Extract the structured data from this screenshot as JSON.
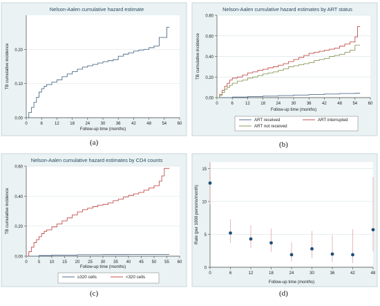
{
  "captions": {
    "a": "(a)",
    "b": "(b)",
    "c": "(c)",
    "d": "(d)"
  },
  "chart_data": [
    {
      "id": "a",
      "type": "line",
      "title": "Nelson-Aalen cumulative hazard estimate",
      "xlabel": "Follow-up time (months)",
      "ylabel": "TB cumulative incidence",
      "xlim": [
        0,
        60
      ],
      "ylim": [
        0,
        0.3
      ],
      "x_ticks": [
        0,
        6,
        12,
        18,
        24,
        30,
        36,
        42,
        48,
        54,
        60
      ],
      "y_ticks": [
        0,
        0.1,
        0.2
      ],
      "y_tick_labels": [
        "0.00",
        "0.10",
        "0.20"
      ],
      "series": [
        {
          "color": "#4f6d8a",
          "x": [
            0,
            1,
            2,
            3,
            4,
            5,
            6,
            7,
            8,
            10,
            12,
            14,
            16,
            18,
            20,
            22,
            24,
            26,
            28,
            30,
            32,
            34,
            36,
            38,
            40,
            42,
            44,
            46,
            48,
            50,
            52,
            54,
            55,
            56
          ],
          "y": [
            0,
            0.015,
            0.03,
            0.045,
            0.06,
            0.075,
            0.085,
            0.092,
            0.097,
            0.104,
            0.111,
            0.12,
            0.128,
            0.135,
            0.142,
            0.148,
            0.152,
            0.156,
            0.16,
            0.164,
            0.167,
            0.17,
            0.18,
            0.186,
            0.19,
            0.195,
            0.198,
            0.2,
            0.205,
            0.21,
            0.235,
            0.235,
            0.265,
            0.265
          ]
        }
      ]
    },
    {
      "id": "b",
      "type": "line",
      "title": "Nelson-Aalen cumulative hazard estimates by ART status",
      "xlabel": "Follow-up time (months)",
      "ylabel": "TB cumulative incidence",
      "xlim": [
        0,
        60
      ],
      "ylim": [
        0,
        0.8
      ],
      "x_ticks": [
        0,
        6,
        12,
        18,
        24,
        30,
        36,
        42,
        48,
        54,
        60
      ],
      "y_ticks": [
        0,
        0.2,
        0.4,
        0.6,
        0.8
      ],
      "y_tick_labels": [
        "0.00",
        "0.20",
        "0.40",
        "0.60",
        "0.80"
      ],
      "legend": [
        "ART received",
        "ART interrupted",
        "ART not received"
      ],
      "legend_position": "bottom",
      "series": [
        {
          "name": "ART received",
          "color": "#4f6d8a",
          "x": [
            0,
            6,
            12,
            18,
            24,
            30,
            36,
            42,
            48,
            54,
            56
          ],
          "y": [
            0,
            0.005,
            0.01,
            0.015,
            0.02,
            0.025,
            0.03,
            0.035,
            0.04,
            0.042,
            0.042
          ]
        },
        {
          "name": "ART interrupted",
          "color": "#c0504d",
          "x": [
            0,
            1,
            2,
            3,
            4,
            5,
            6,
            8,
            10,
            12,
            14,
            16,
            18,
            20,
            22,
            24,
            26,
            28,
            30,
            32,
            34,
            36,
            38,
            40,
            42,
            44,
            46,
            48,
            50,
            52,
            54,
            55,
            56
          ],
          "y": [
            0,
            0.03,
            0.07,
            0.11,
            0.14,
            0.17,
            0.19,
            0.2,
            0.22,
            0.24,
            0.25,
            0.265,
            0.275,
            0.29,
            0.3,
            0.315,
            0.33,
            0.35,
            0.37,
            0.39,
            0.41,
            0.43,
            0.44,
            0.45,
            0.46,
            0.47,
            0.48,
            0.5,
            0.52,
            0.54,
            0.59,
            0.69,
            0.69
          ]
        },
        {
          "name": "ART not received",
          "color": "#8a9a5b",
          "x": [
            0,
            1,
            2,
            3,
            4,
            5,
            6,
            8,
            10,
            12,
            14,
            16,
            18,
            20,
            22,
            24,
            26,
            28,
            30,
            32,
            34,
            36,
            38,
            40,
            42,
            44,
            46,
            48,
            50,
            52,
            54,
            56
          ],
          "y": [
            0,
            0.02,
            0.05,
            0.08,
            0.1,
            0.12,
            0.14,
            0.16,
            0.17,
            0.19,
            0.2,
            0.215,
            0.23,
            0.24,
            0.25,
            0.265,
            0.28,
            0.3,
            0.31,
            0.32,
            0.33,
            0.34,
            0.36,
            0.37,
            0.38,
            0.4,
            0.41,
            0.42,
            0.44,
            0.46,
            0.51,
            0.51
          ]
        }
      ]
    },
    {
      "id": "c",
      "type": "line",
      "title": "Nelson-Aalen cumulative hazard estimates by CD4 counts",
      "xlabel": "Follow-up time (months)",
      "ylabel": "TB cumulative incidence",
      "xlim": [
        0,
        60
      ],
      "ylim": [
        0,
        0.6
      ],
      "x_ticks": [
        0,
        5,
        10,
        15,
        20,
        25,
        30,
        35,
        40,
        45,
        50,
        55,
        60
      ],
      "y_ticks": [
        0,
        0.2,
        0.4,
        0.6
      ],
      "y_tick_labels": [
        "0.00",
        "0.20",
        "0.40",
        "0.60"
      ],
      "legend": [
        "≥320 cells",
        "<320 cells"
      ],
      "legend_position": "bottom",
      "series": [
        {
          "name": "≥320 cells",
          "color": "#4f6d8a",
          "x": [
            0,
            5,
            10,
            20,
            30,
            40,
            50,
            56
          ],
          "y": [
            0,
            0.004,
            0.007,
            0.01,
            0.011,
            0.012,
            0.012,
            0.012
          ]
        },
        {
          "name": "<320 cells",
          "color": "#c0504d",
          "x": [
            0,
            1,
            2,
            3,
            4,
            5,
            6,
            7,
            8,
            10,
            12,
            14,
            16,
            18,
            20,
            22,
            24,
            26,
            28,
            30,
            32,
            34,
            36,
            38,
            40,
            42,
            44,
            46,
            48,
            50,
            52,
            53,
            54,
            56
          ],
          "y": [
            0,
            0.03,
            0.06,
            0.09,
            0.11,
            0.13,
            0.15,
            0.165,
            0.175,
            0.195,
            0.215,
            0.235,
            0.255,
            0.275,
            0.295,
            0.31,
            0.32,
            0.33,
            0.34,
            0.345,
            0.355,
            0.37,
            0.38,
            0.395,
            0.405,
            0.415,
            0.425,
            0.44,
            0.455,
            0.47,
            0.5,
            0.535,
            0.585,
            0.585
          ]
        }
      ]
    },
    {
      "id": "d",
      "type": "scatter",
      "title": "",
      "xlabel": "Follow-up time (months)",
      "ylabel": "Rate (per 1000 persons/month)",
      "xlim": [
        0,
        48
      ],
      "ylim": [
        0,
        16
      ],
      "x_ticks": [
        0,
        6,
        12,
        18,
        24,
        30,
        36,
        42,
        48
      ],
      "y_ticks": [
        0,
        5,
        10,
        15
      ],
      "y_tick_labels": [
        "0",
        "5",
        "10",
        "15"
      ],
      "points": [
        {
          "x": 0,
          "y": 12.8,
          "lo": 9.6,
          "hi": 16.0
        },
        {
          "x": 6,
          "y": 5.2,
          "lo": 3.7,
          "hi": 7.3
        },
        {
          "x": 12,
          "y": 4.3,
          "lo": 2.9,
          "hi": 6.4
        },
        {
          "x": 18,
          "y": 3.7,
          "lo": 2.3,
          "hi": 5.9
        },
        {
          "x": 24,
          "y": 1.9,
          "lo": 0.9,
          "hi": 3.8
        },
        {
          "x": 30,
          "y": 2.8,
          "lo": 1.4,
          "hi": 5.5
        },
        {
          "x": 36,
          "y": 2.0,
          "lo": 0.8,
          "hi": 4.9
        },
        {
          "x": 42,
          "y": 1.9,
          "lo": 0.6,
          "hi": 5.8
        },
        {
          "x": 48,
          "y": 5.7,
          "lo": 2.4,
          "hi": 13.7
        }
      ]
    }
  ]
}
